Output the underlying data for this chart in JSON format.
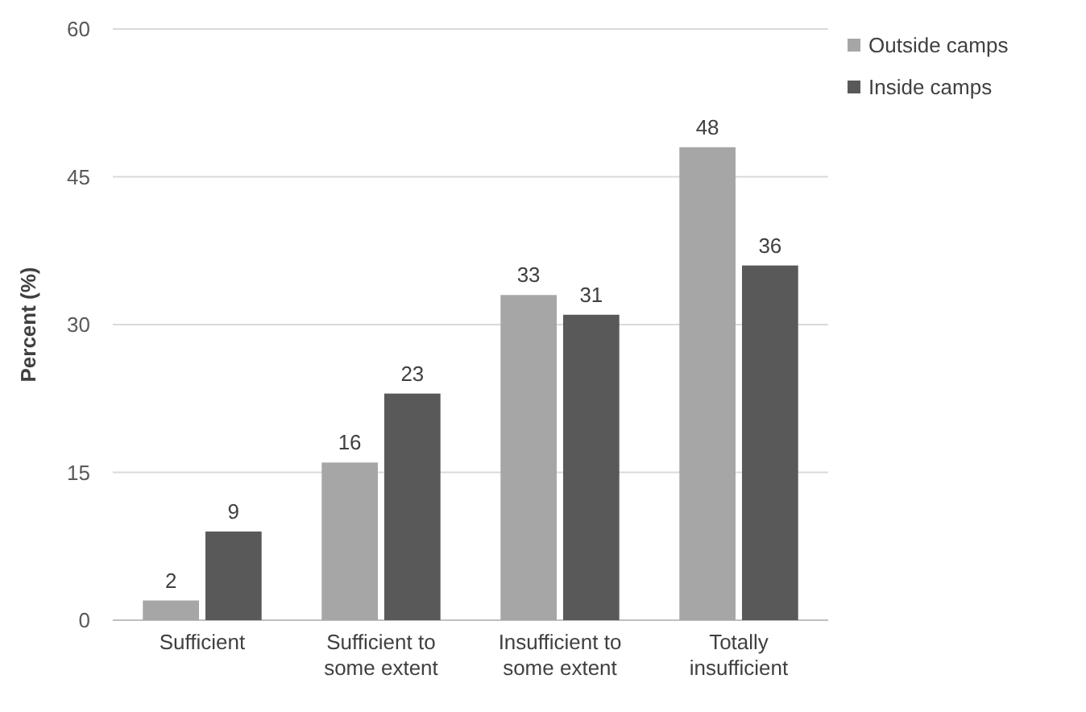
{
  "chart_data": {
    "type": "bar",
    "ylabel": "Percent (%)",
    "categories": [
      "Sufficient",
      "Sufficient to some extent",
      "Insufficient to some extent",
      "Totally insufficient"
    ],
    "series": [
      {
        "name": "Outside camps",
        "color": "#a6a6a6",
        "values": [
          2,
          16,
          33,
          48
        ]
      },
      {
        "name": "Inside camps",
        "color": "#595959",
        "values": [
          9,
          23,
          31,
          36
        ]
      }
    ],
    "ylim": [
      0,
      60
    ],
    "yticks": [
      0,
      15,
      30,
      45,
      60
    ],
    "grid": "y",
    "legend": "top right",
    "data_labels": true
  }
}
